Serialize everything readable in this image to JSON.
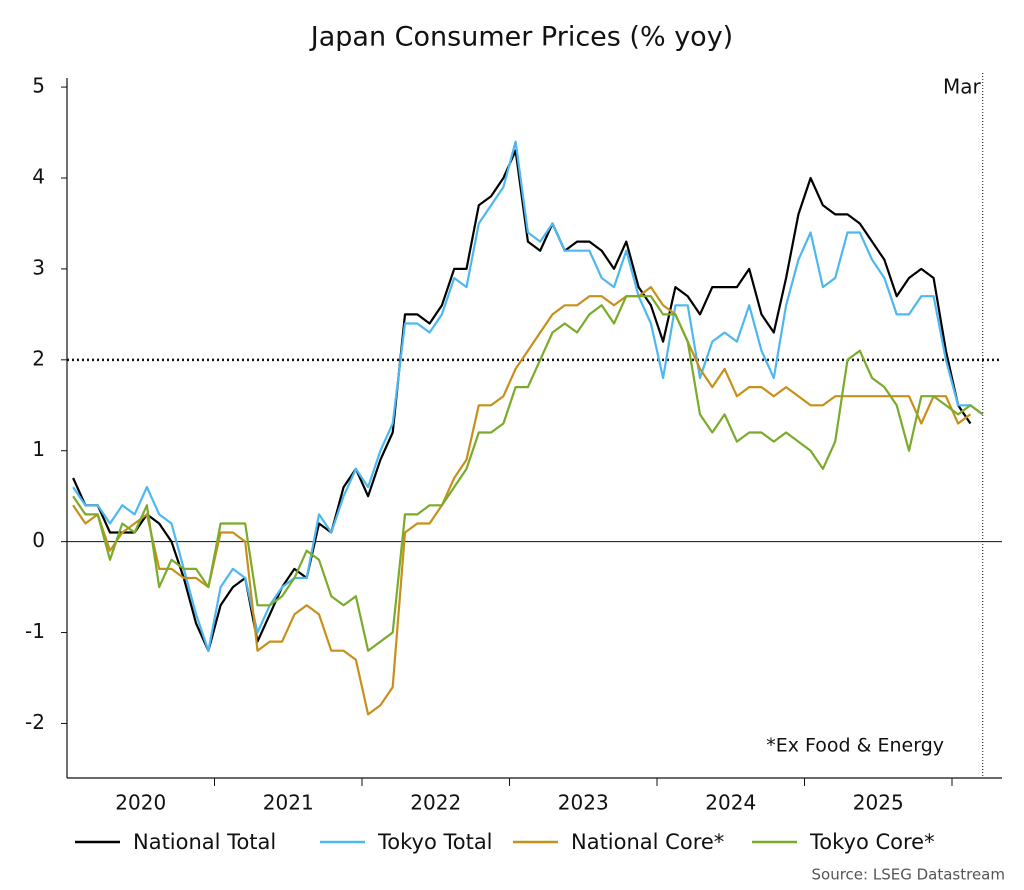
{
  "chart_data": {
    "type": "line",
    "title": "Japan Consumer Prices (% yoy)",
    "x_labels": [
      "2020",
      "2021",
      "2022",
      "2023",
      "2024",
      "2025"
    ],
    "ylim": [
      -2.6,
      5.1
    ],
    "yticks": [
      -2,
      -1,
      0,
      1,
      2,
      3,
      4,
      5
    ],
    "reference_line": 2,
    "vline_label": "Mar",
    "annotation": "*Ex Food & Energy",
    "source": "Source: LSEG Datastream",
    "series": [
      {
        "name": "National Total",
        "color": "#000000",
        "values": [
          0.7,
          0.4,
          0.4,
          0.1,
          0.1,
          0.1,
          0.3,
          0.2,
          0.0,
          -0.4,
          -0.9,
          -1.2,
          -0.7,
          -0.5,
          -0.4,
          -1.1,
          -0.8,
          -0.5,
          -0.3,
          -0.4,
          0.2,
          0.1,
          0.6,
          0.8,
          0.5,
          0.9,
          1.2,
          2.5,
          2.5,
          2.4,
          2.6,
          3.0,
          3.0,
          3.7,
          3.8,
          4.0,
          4.3,
          3.3,
          3.2,
          3.5,
          3.2,
          3.3,
          3.3,
          3.2,
          3.0,
          3.3,
          2.8,
          2.6,
          2.2,
          2.8,
          2.7,
          2.5,
          2.8,
          2.8,
          2.8,
          3.0,
          2.5,
          2.3,
          2.9,
          3.6,
          4.0,
          3.7,
          3.6,
          3.6,
          3.5,
          3.3,
          3.1,
          2.7,
          2.9,
          3.0,
          2.9,
          2.1,
          1.5,
          1.3
        ]
      },
      {
        "name": "Tokyo Total",
        "color": "#4db8f0",
        "values": [
          0.6,
          0.4,
          0.4,
          0.2,
          0.4,
          0.3,
          0.6,
          0.3,
          0.2,
          -0.3,
          -0.8,
          -1.2,
          -0.5,
          -0.3,
          -0.4,
          -1.0,
          -0.7,
          -0.5,
          -0.4,
          -0.4,
          0.3,
          0.1,
          0.5,
          0.8,
          0.6,
          1.0,
          1.3,
          2.4,
          2.4,
          2.3,
          2.5,
          2.9,
          2.8,
          3.5,
          3.7,
          3.9,
          4.4,
          3.4,
          3.3,
          3.5,
          3.2,
          3.2,
          3.2,
          2.9,
          2.8,
          3.2,
          2.7,
          2.4,
          1.8,
          2.6,
          2.6,
          1.8,
          2.2,
          2.3,
          2.2,
          2.6,
          2.1,
          1.8,
          2.6,
          3.1,
          3.4,
          2.8,
          2.9,
          3.4,
          3.4,
          3.1,
          2.9,
          2.5,
          2.5,
          2.7,
          2.7,
          2.0,
          1.5,
          1.5,
          1.4
        ]
      },
      {
        "name": "National Core*",
        "color": "#c8901a",
        "values": [
          0.4,
          0.2,
          0.3,
          -0.1,
          0.1,
          0.2,
          0.3,
          -0.3,
          -0.3,
          -0.4,
          -0.4,
          -0.5,
          0.1,
          0.1,
          0.0,
          -1.2,
          -1.1,
          -1.1,
          -0.8,
          -0.7,
          -0.8,
          -1.2,
          -1.2,
          -1.3,
          -1.9,
          -1.8,
          -1.6,
          0.1,
          0.2,
          0.2,
          0.4,
          0.7,
          0.9,
          1.5,
          1.5,
          1.6,
          1.9,
          2.1,
          2.3,
          2.5,
          2.6,
          2.6,
          2.7,
          2.7,
          2.6,
          2.7,
          2.7,
          2.8,
          2.6,
          2.5,
          2.2,
          1.9,
          1.7,
          1.9,
          1.6,
          1.7,
          1.7,
          1.6,
          1.7,
          1.6,
          1.5,
          1.5,
          1.6,
          1.6,
          1.6,
          1.6,
          1.6,
          1.6,
          1.6,
          1.3,
          1.6,
          1.6,
          1.3,
          1.4
        ]
      },
      {
        "name": "Tokyo Core*",
        "color": "#7aab2a",
        "values": [
          0.5,
          0.3,
          0.3,
          -0.2,
          0.2,
          0.1,
          0.4,
          -0.5,
          -0.2,
          -0.3,
          -0.3,
          -0.5,
          0.2,
          0.2,
          0.2,
          -0.7,
          -0.7,
          -0.6,
          -0.4,
          -0.1,
          -0.2,
          -0.6,
          -0.7,
          -0.6,
          -1.2,
          -1.1,
          -1.0,
          0.3,
          0.3,
          0.4,
          0.4,
          0.6,
          0.8,
          1.2,
          1.2,
          1.3,
          1.7,
          1.7,
          2.0,
          2.3,
          2.4,
          2.3,
          2.5,
          2.6,
          2.4,
          2.7,
          2.7,
          2.7,
          2.5,
          2.5,
          2.2,
          1.4,
          1.2,
          1.4,
          1.1,
          1.2,
          1.2,
          1.1,
          1.2,
          1.1,
          1.0,
          0.8,
          1.1,
          2.0,
          2.1,
          1.8,
          1.7,
          1.5,
          1.0,
          1.6,
          1.6,
          1.5,
          1.4,
          1.5,
          1.4
        ]
      }
    ]
  }
}
